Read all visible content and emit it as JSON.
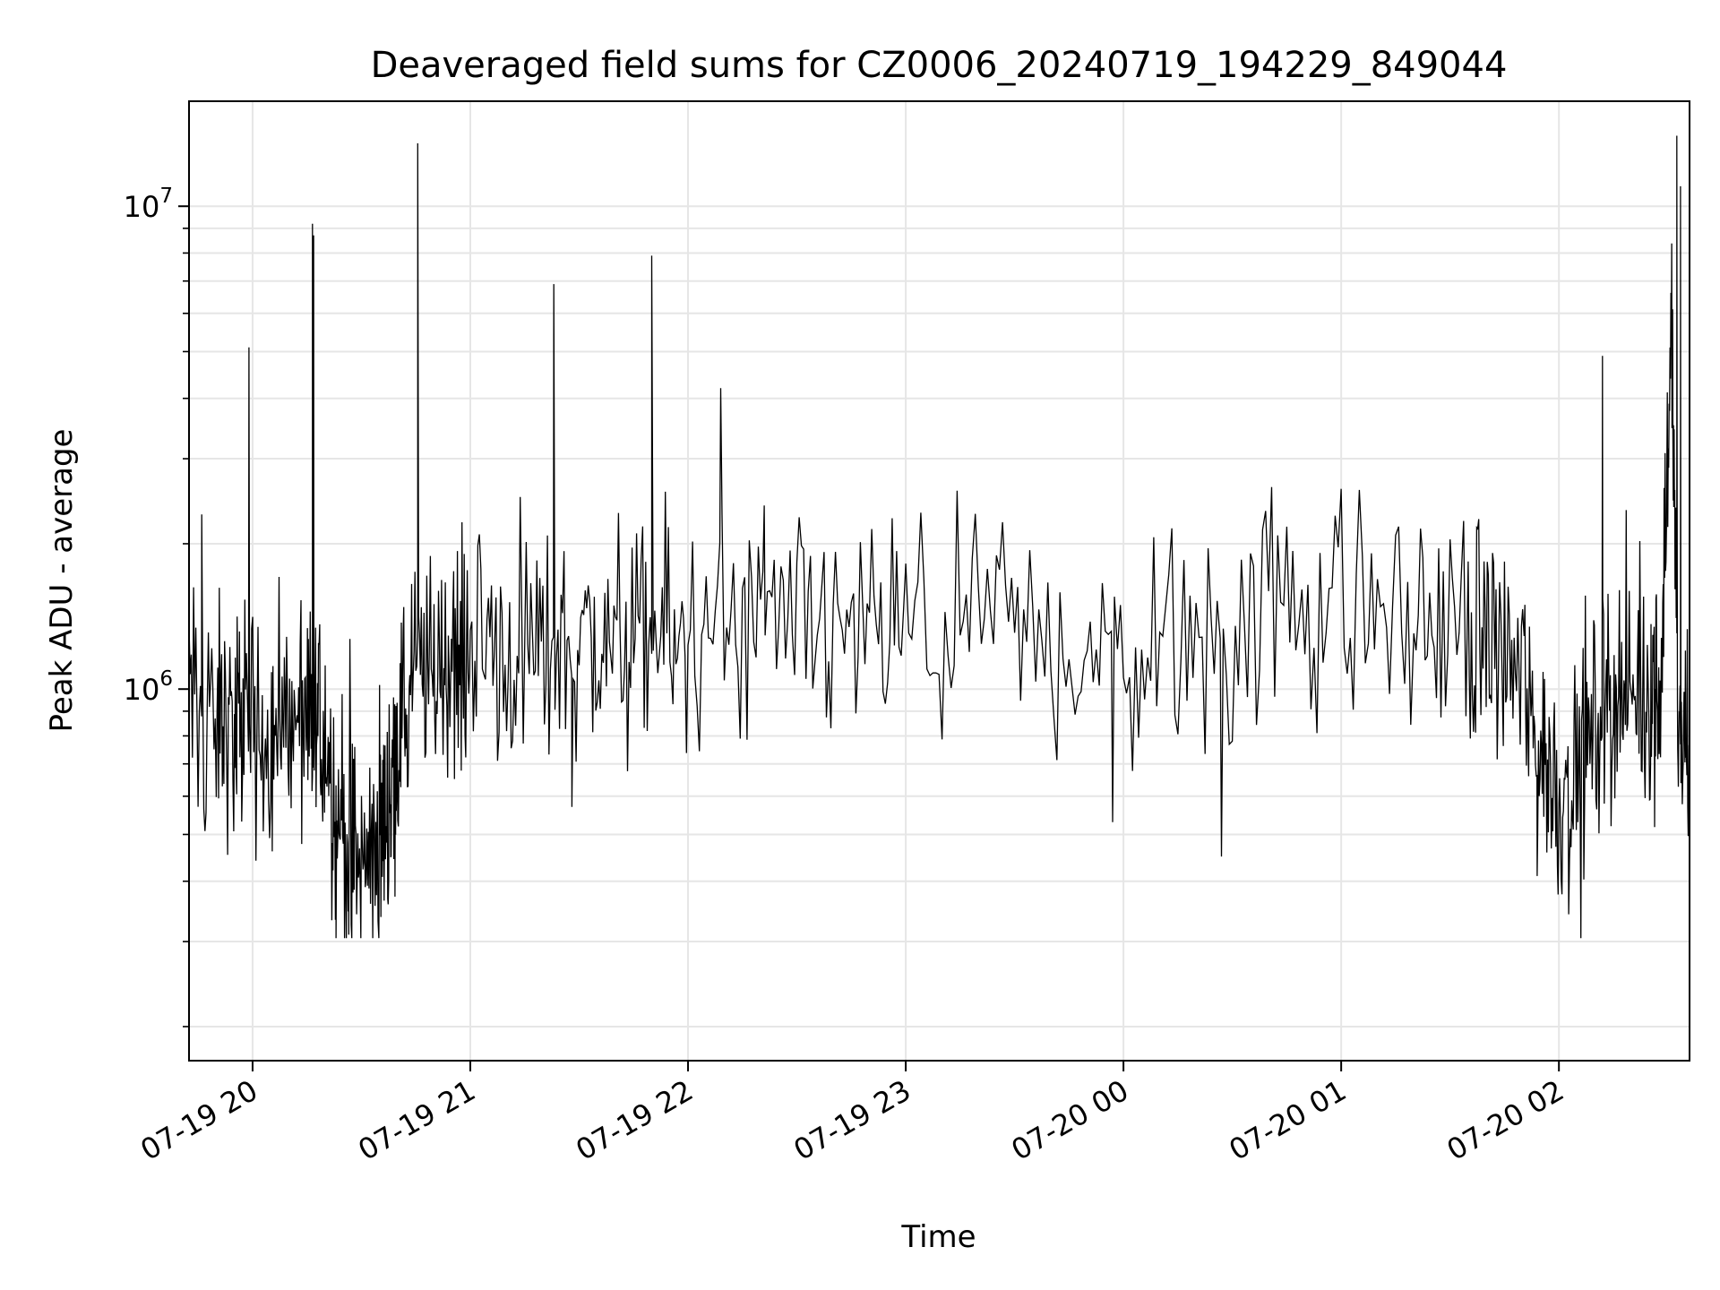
{
  "chart_data": {
    "type": "line",
    "title": "Deaveraged field sums for CZ0006_20240719_194229_849044",
    "xlabel": "Time",
    "ylabel": "Peak ADU - average",
    "x_scale": "time",
    "y_scale": "log",
    "xlim": [
      "2024-07-19T19:42:29",
      "2024-07-20T02:36:00"
    ],
    "ylim": [
      170000,
      16500000
    ],
    "grid": true,
    "legend": "none",
    "line_color": "#000000",
    "grid_color": "#e6e6e6",
    "x_ticks": [
      {
        "value": "2024-07-19T20:00:00",
        "label": "07-19 20"
      },
      {
        "value": "2024-07-19T21:00:00",
        "label": "07-19 21"
      },
      {
        "value": "2024-07-19T22:00:00",
        "label": "07-19 22"
      },
      {
        "value": "2024-07-19T23:00:00",
        "label": "07-19 23"
      },
      {
        "value": "2024-07-20T00:00:00",
        "label": "07-20 00"
      },
      {
        "value": "2024-07-20T01:00:00",
        "label": "07-20 01"
      },
      {
        "value": "2024-07-20T02:00:00",
        "label": "07-20 02"
      }
    ],
    "y_major_ticks": [
      {
        "value": 1000000,
        "base": "10",
        "exp": "6"
      },
      {
        "value": 10000000,
        "base": "10",
        "exp": "7"
      }
    ],
    "y_minor_ticks": [
      200000,
      300000,
      400000,
      500000,
      600000,
      700000,
      800000,
      900000,
      2000000,
      3000000,
      4000000,
      5000000,
      6000000,
      7000000,
      8000000,
      9000000
    ],
    "series": [
      {
        "x": [
          "2024-07-19T19:42:29",
          "2024-07-19T19:50:00",
          "2024-07-19T19:55:00",
          "2024-07-19T19:58:00",
          "2024-07-19T20:05:00",
          "2024-07-19T20:10:00",
          "2024-07-19T20:15:00",
          "2024-07-19T20:18:00",
          "2024-07-19T20:22:00",
          "2024-07-19T20:26:00",
          "2024-07-19T20:30:00",
          "2024-07-19T20:35:00",
          "2024-07-19T20:38:00",
          "2024-07-19T20:40:00",
          "2024-07-19T20:44:00",
          "2024-07-19T20:50:00",
          "2024-07-19T20:55:00",
          "2024-07-19T21:00:00",
          "2024-07-19T21:10:00",
          "2024-07-19T21:20:00",
          "2024-07-19T21:30:00",
          "2024-07-19T21:40:00",
          "2024-07-19T21:50:00",
          "2024-07-19T22:00:00",
          "2024-07-19T22:15:00",
          "2024-07-19T22:30:00",
          "2024-07-19T22:45:00",
          "2024-07-19T23:00:00",
          "2024-07-19T23:20:00",
          "2024-07-19T23:40:00",
          "2024-07-20T00:00:00",
          "2024-07-20T00:20:00",
          "2024-07-20T00:40:00",
          "2024-07-20T01:00:00",
          "2024-07-20T01:20:00",
          "2024-07-20T01:35:00",
          "2024-07-20T01:42:00",
          "2024-07-20T01:50:00",
          "2024-07-20T01:55:00",
          "2024-07-20T02:00:00",
          "2024-07-20T02:05:00",
          "2024-07-20T02:10:00",
          "2024-07-20T02:15:00",
          "2024-07-20T02:20:00",
          "2024-07-20T02:25:00",
          "2024-07-20T02:28:00",
          "2024-07-20T02:31:00",
          "2024-07-20T02:33:00",
          "2024-07-20T02:36:00"
        ],
        "y": [
          950000,
          900000,
          800000,
          850000,
          800000,
          850000,
          800000,
          900000,
          650000,
          500000,
          400000,
          500000,
          600000,
          800000,
          1050000,
          1100000,
          1150000,
          1200000,
          1250000,
          1200000,
          1250000,
          1200000,
          1250000,
          1300000,
          1300000,
          1300000,
          1300000,
          1300000,
          1300000,
          1250000,
          1200000,
          1350000,
          1450000,
          1500000,
          1400000,
          1300000,
          1300000,
          1050000,
          750000,
          600000,
          650000,
          900000,
          1000000,
          950000,
          1000000,
          1050000,
          6000000,
          800000,
          750000
        ],
        "noise": 0.17,
        "samples_per_segment": 24,
        "min_y": 305000
      }
    ],
    "spikes": [
      {
        "x": "2024-07-19T19:59:00",
        "y": 5100000
      },
      {
        "x": "2024-07-19T20:16:30",
        "y": 9200000
      },
      {
        "x": "2024-07-19T20:16:50",
        "y": 8700000
      },
      {
        "x": "2024-07-19T20:45:30",
        "y": 13500000
      },
      {
        "x": "2024-07-19T21:23:00",
        "y": 6900000
      },
      {
        "x": "2024-07-19T21:50:00",
        "y": 7900000
      },
      {
        "x": "2024-07-19T22:09:00",
        "y": 4200000
      },
      {
        "x": "2024-07-19T22:21:00",
        "y": 2400000
      },
      {
        "x": "2024-07-19T19:46:00",
        "y": 2300000
      },
      {
        "x": "2024-07-20T02:12:00",
        "y": 4900000
      },
      {
        "x": "2024-07-20T02:32:30",
        "y": 14000000
      },
      {
        "x": "2024-07-20T02:33:30",
        "y": 11000000
      }
    ],
    "dips": [
      {
        "x": "2024-07-19T20:23:00",
        "y": 305000
      },
      {
        "x": "2024-07-19T20:26:30",
        "y": 310000
      },
      {
        "x": "2024-07-19T21:28:00",
        "y": 570000
      },
      {
        "x": "2024-07-19T23:57:00",
        "y": 530000
      },
      {
        "x": "2024-07-20T00:27:00",
        "y": 450000
      },
      {
        "x": "2024-07-20T01:54:00",
        "y": 410000
      }
    ]
  }
}
